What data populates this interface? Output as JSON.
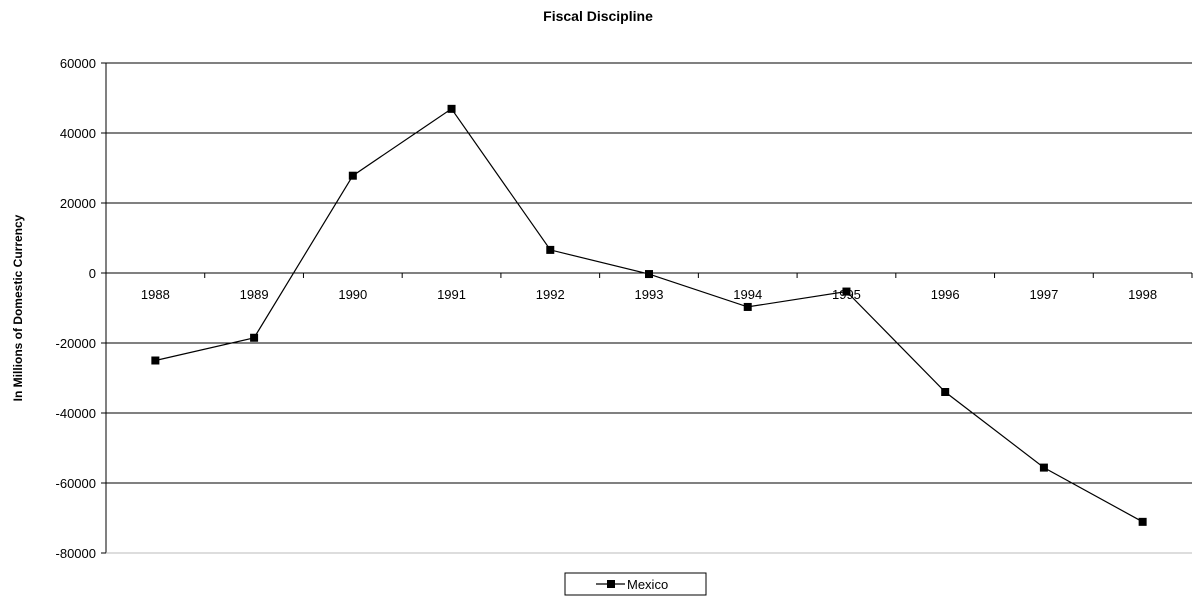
{
  "chart_data": {
    "type": "line",
    "title": "Fiscal Discipline",
    "xlabel": "",
    "ylabel": "In Millions of Domestic Currency",
    "categories": [
      "1988",
      "1989",
      "1990",
      "1991",
      "1992",
      "1993",
      "1994",
      "1995",
      "1996",
      "1997",
      "1998"
    ],
    "series": [
      {
        "name": "Mexico",
        "values": [
          -25000,
          -18500,
          27800,
          46900,
          6600,
          -300,
          -9700,
          -5300,
          -34000,
          -55600,
          -71100
        ]
      }
    ],
    "ylim": [
      -80000,
      60000
    ],
    "yticks": [
      "60000",
      "40000",
      "20000",
      "0",
      "-20000",
      "-40000",
      "-60000",
      "-80000"
    ],
    "grid": true,
    "legend_position": "bottom-center",
    "colors": {
      "line": "#000000",
      "grid": "#000000",
      "background": "#ffffff"
    }
  }
}
